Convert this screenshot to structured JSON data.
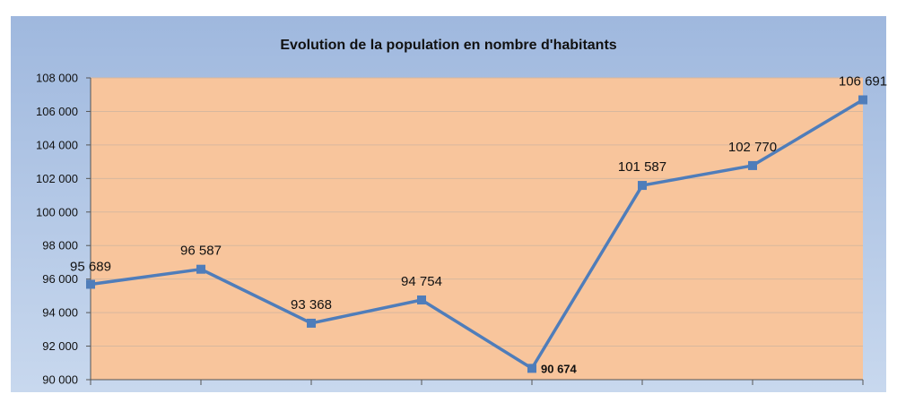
{
  "colors": {
    "frame_top": "#9fb8de",
    "frame_bottom": "#c8d8ee",
    "plot_fill": "#f8c59c",
    "line": "#4f7dba",
    "marker": "#4f7dba",
    "gridline": "#d7b89e",
    "axis": "#555555"
  },
  "chart_data": {
    "type": "line",
    "title": "Evolution de la population en nombre d'habitants",
    "xlabel": "",
    "ylabel": "",
    "x": [
      1,
      2,
      3,
      4,
      5,
      6,
      7,
      8
    ],
    "series": [
      {
        "values": [
          95689,
          96587,
          93368,
          94754,
          90674,
          101587,
          102770,
          106691
        ],
        "labels": [
          "95 689",
          "96 587",
          "93 368",
          "94 754",
          "90 674",
          "101 587",
          "102 770",
          "106 691"
        ]
      }
    ],
    "ylim": [
      90000,
      108000
    ],
    "ytick_values": [
      90000,
      92000,
      94000,
      96000,
      98000,
      100000,
      102000,
      104000,
      106000,
      108000
    ],
    "ytick_labels": [
      "90 000",
      "92 000",
      "94 000",
      "96 000",
      "98 000",
      "100 000",
      "102 000",
      "104 000",
      "106 000",
      "108 000"
    ],
    "xtick_labels": [],
    "grid": true,
    "legend": "none",
    "marker": "square"
  }
}
